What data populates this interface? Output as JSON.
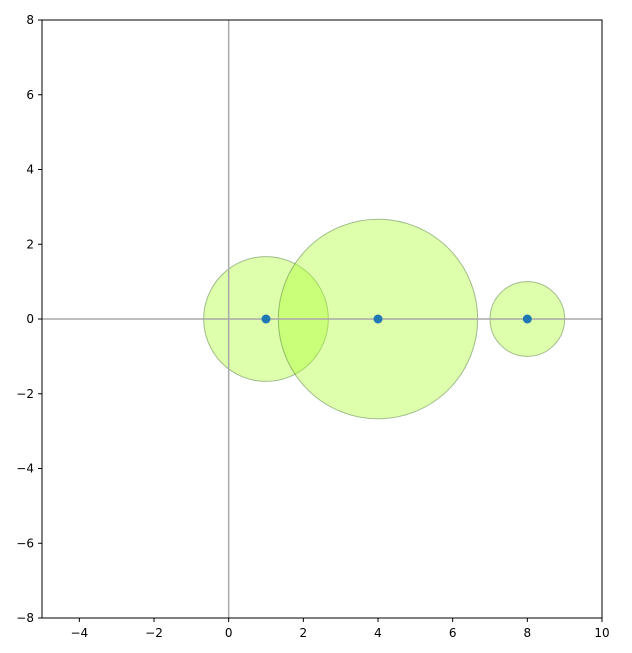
{
  "chart_data": {
    "type": "scatter",
    "title": "",
    "xlabel": "",
    "ylabel": "",
    "xlim": [
      -5,
      10
    ],
    "ylim": [
      -8,
      8
    ],
    "xticks": [
      -4,
      -2,
      0,
      2,
      4,
      6,
      8,
      10
    ],
    "xtick_labels": [
      "−4",
      "−2",
      "0",
      "2",
      "4",
      "6",
      "8",
      "10"
    ],
    "yticks": [
      -8,
      -6,
      -4,
      -2,
      0,
      2,
      4,
      6,
      8
    ],
    "ytick_labels": [
      "−8",
      "−6",
      "−4",
      "−2",
      "0",
      "2",
      "4",
      "6",
      "8"
    ],
    "grid": false,
    "reference_lines": {
      "x": 0,
      "y": 0,
      "color": "#a9a9a9"
    },
    "points": [
      {
        "x": 1,
        "y": 0
      },
      {
        "x": 4,
        "y": 0
      },
      {
        "x": 8,
        "y": 0
      }
    ],
    "circles": [
      {
        "cx": 1,
        "cy": 0,
        "r": 1.67
      },
      {
        "cx": 4,
        "cy": 0,
        "r": 2.67
      },
      {
        "cx": 8,
        "cy": 0,
        "r": 1.0
      }
    ],
    "colors": {
      "point": "#1f77b4",
      "circle_fill": "#adff2f",
      "circle_fill_opacity": 0.4,
      "circle_edge": "#4f7a3f"
    }
  }
}
